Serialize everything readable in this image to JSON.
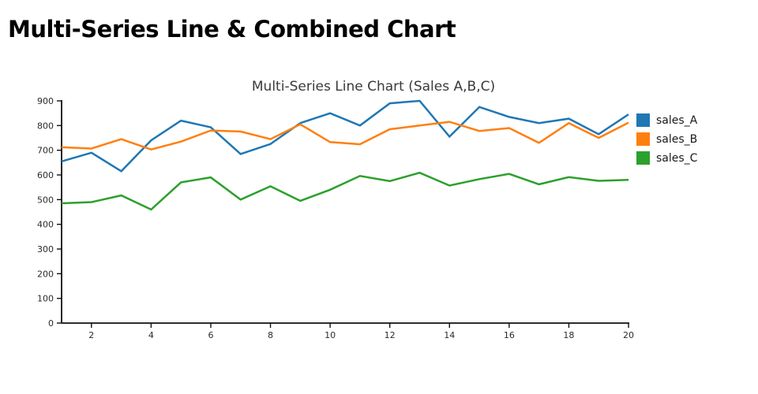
{
  "page": {
    "title": "Multi-Series Line & Combined Chart"
  },
  "chart_data": {
    "type": "line",
    "title": "Multi-Series Line Chart (Sales A,B,C)",
    "xlabel": "",
    "ylabel": "",
    "xlim": [
      1,
      20
    ],
    "ylim": [
      0,
      900
    ],
    "grid": false,
    "legend_position": "right",
    "x": [
      1,
      2,
      3,
      4,
      5,
      6,
      7,
      8,
      9,
      10,
      11,
      12,
      13,
      14,
      15,
      16,
      17,
      18,
      19,
      20
    ],
    "x_ticks": [
      2,
      4,
      6,
      8,
      10,
      12,
      14,
      16,
      18,
      20
    ],
    "y_ticks": [
      0,
      100,
      200,
      300,
      400,
      500,
      600,
      700,
      800,
      900
    ],
    "series": [
      {
        "name": "sales_A",
        "color": "#1f77b4",
        "values": [
          655,
          690,
          615,
          740,
          820,
          793,
          685,
          725,
          810,
          850,
          800,
          890,
          900,
          755,
          875,
          835,
          810,
          828,
          765,
          845
        ]
      },
      {
        "name": "sales_B",
        "color": "#ff7f0e",
        "values": [
          712,
          707,
          745,
          703,
          735,
          780,
          776,
          745,
          805,
          733,
          724,
          785,
          800,
          815,
          778,
          790,
          730,
          810,
          750,
          812
        ]
      },
      {
        "name": "sales_C",
        "color": "#2ca02c",
        "values": [
          485,
          490,
          517,
          460,
          570,
          590,
          500,
          554,
          495,
          540,
          596,
          575,
          609,
          557,
          583,
          604,
          562,
          591,
          576,
          580
        ]
      }
    ]
  }
}
